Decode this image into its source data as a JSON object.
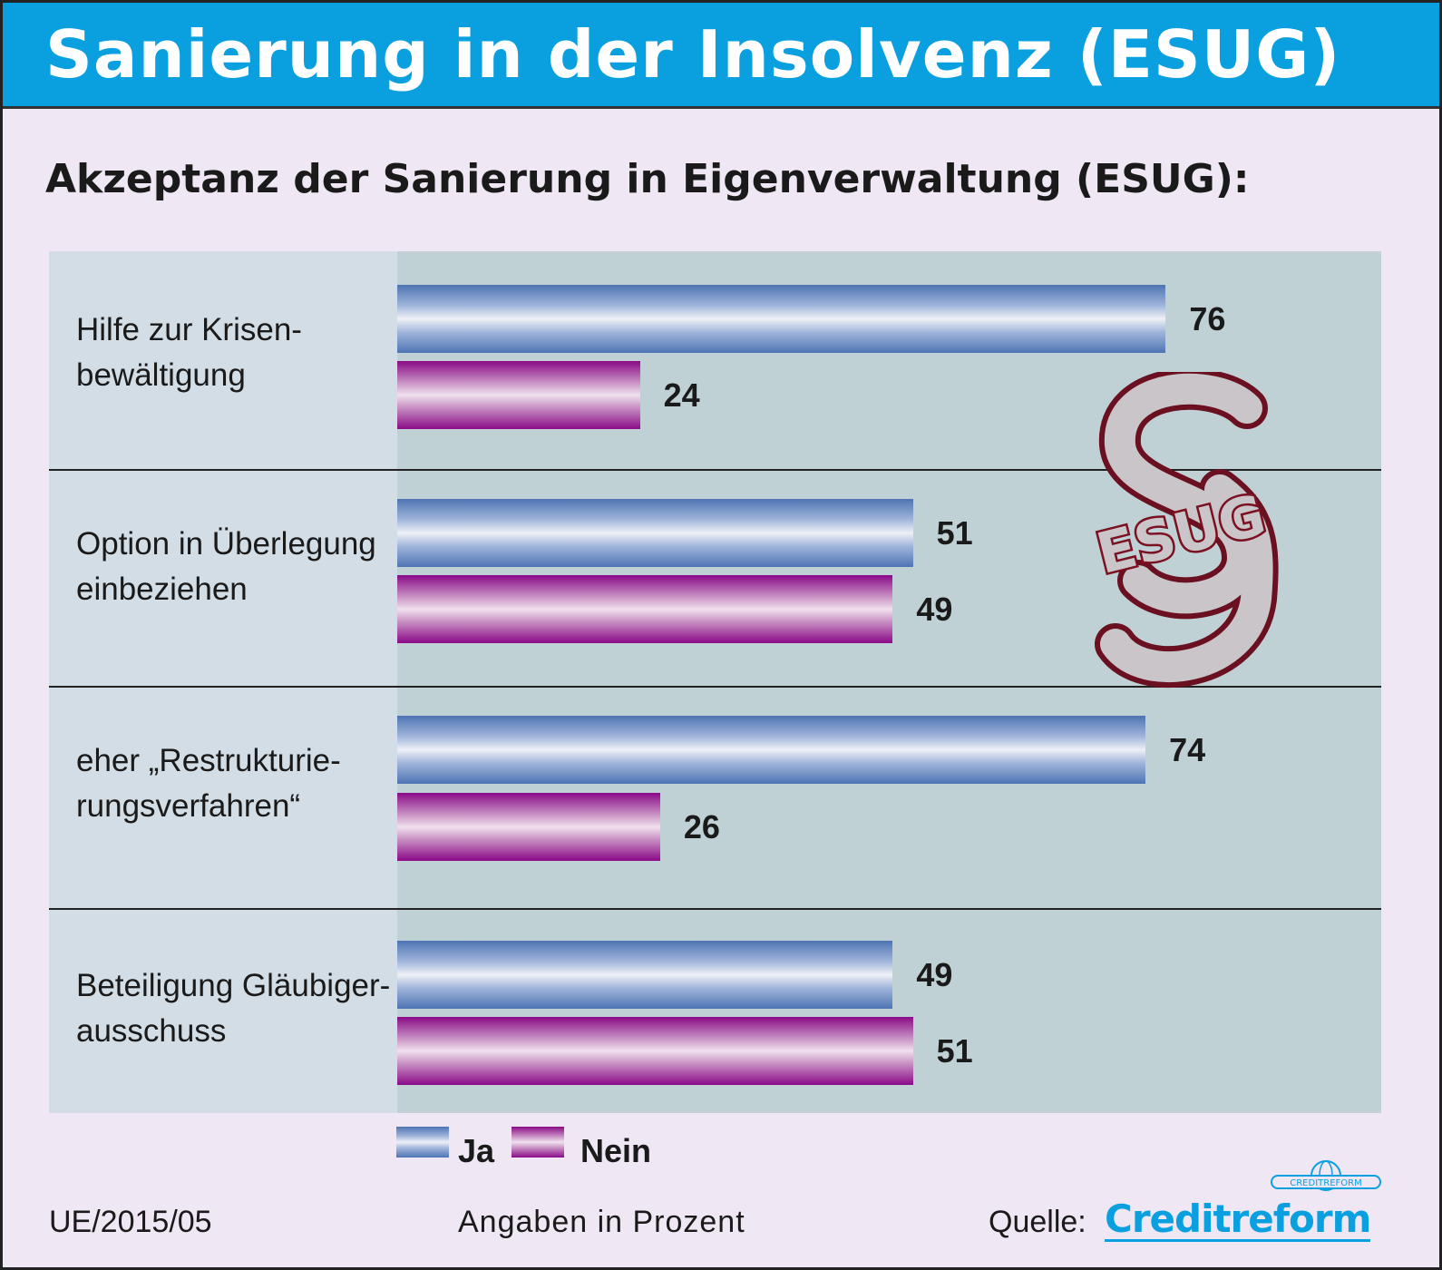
{
  "title": "Sanierung in der Insolvenz (ESUG)",
  "chart_data": {
    "type": "bar",
    "orientation": "horizontal",
    "title": "Akzeptanz der Sanierung in Eigenverwaltung (ESUG):",
    "categories": [
      [
        "Hilfe zur Krisen-",
        "bewältigung"
      ],
      [
        "Option in Überlegung",
        "einbeziehen"
      ],
      [
        "eher „Restrukturie-",
        "rungsverfahren“"
      ],
      [
        "Beteiligung Gläubiger-",
        "ausschuss"
      ]
    ],
    "series": [
      {
        "name": "Ja",
        "values": [
          76,
          51,
          74,
          49
        ],
        "color": "#4e74b4"
      },
      {
        "name": "Nein",
        "values": [
          24,
          49,
          26,
          51
        ],
        "color": "#8a0a88"
      }
    ],
    "unit_note": "Angaben in Prozent",
    "legend": "bottom",
    "xlim": [
      0,
      100
    ]
  },
  "logo": {
    "symbol": "§",
    "text": "ESUG"
  },
  "footer": {
    "code": "UE/2015/05",
    "note": "Angaben in Prozent",
    "source_label": "Quelle:",
    "source": "Creditreform",
    "source_logo_text": "CREDITREFORM"
  }
}
